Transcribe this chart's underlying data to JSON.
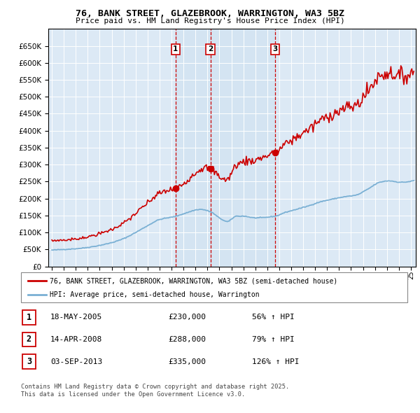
{
  "title1": "76, BANK STREET, GLAZEBROOK, WARRINGTON, WA3 5BZ",
  "title2": "Price paid vs. HM Land Registry's House Price Index (HPI)",
  "legend_line1": "76, BANK STREET, GLAZEBROOK, WARRINGTON, WA3 5BZ (semi-detached house)",
  "legend_line2": "HPI: Average price, semi-detached house, Warrington",
  "sale_color": "#cc0000",
  "hpi_color": "#7ab0d4",
  "sale_date1": "18-MAY-2005",
  "sale_price1": 230000,
  "sale_hpi1": "56% ↑ HPI",
  "sale_date2": "14-APR-2008",
  "sale_price2": 288000,
  "sale_hpi2": "79% ↑ HPI",
  "sale_date3": "03-SEP-2013",
  "sale_price3": 335000,
  "sale_hpi3": "126% ↑ HPI",
  "footnote1": "Contains HM Land Registry data © Crown copyright and database right 2025.",
  "footnote2": "This data is licensed under the Open Government Licence v3.0.",
  "ylim": [
    0,
    700000
  ],
  "yticks": [
    0,
    50000,
    100000,
    150000,
    200000,
    250000,
    300000,
    350000,
    400000,
    450000,
    500000,
    550000,
    600000,
    650000
  ],
  "plot_bg": "#dce9f5",
  "grid_color": "#ffffff",
  "shade_color": "#cde0f0"
}
